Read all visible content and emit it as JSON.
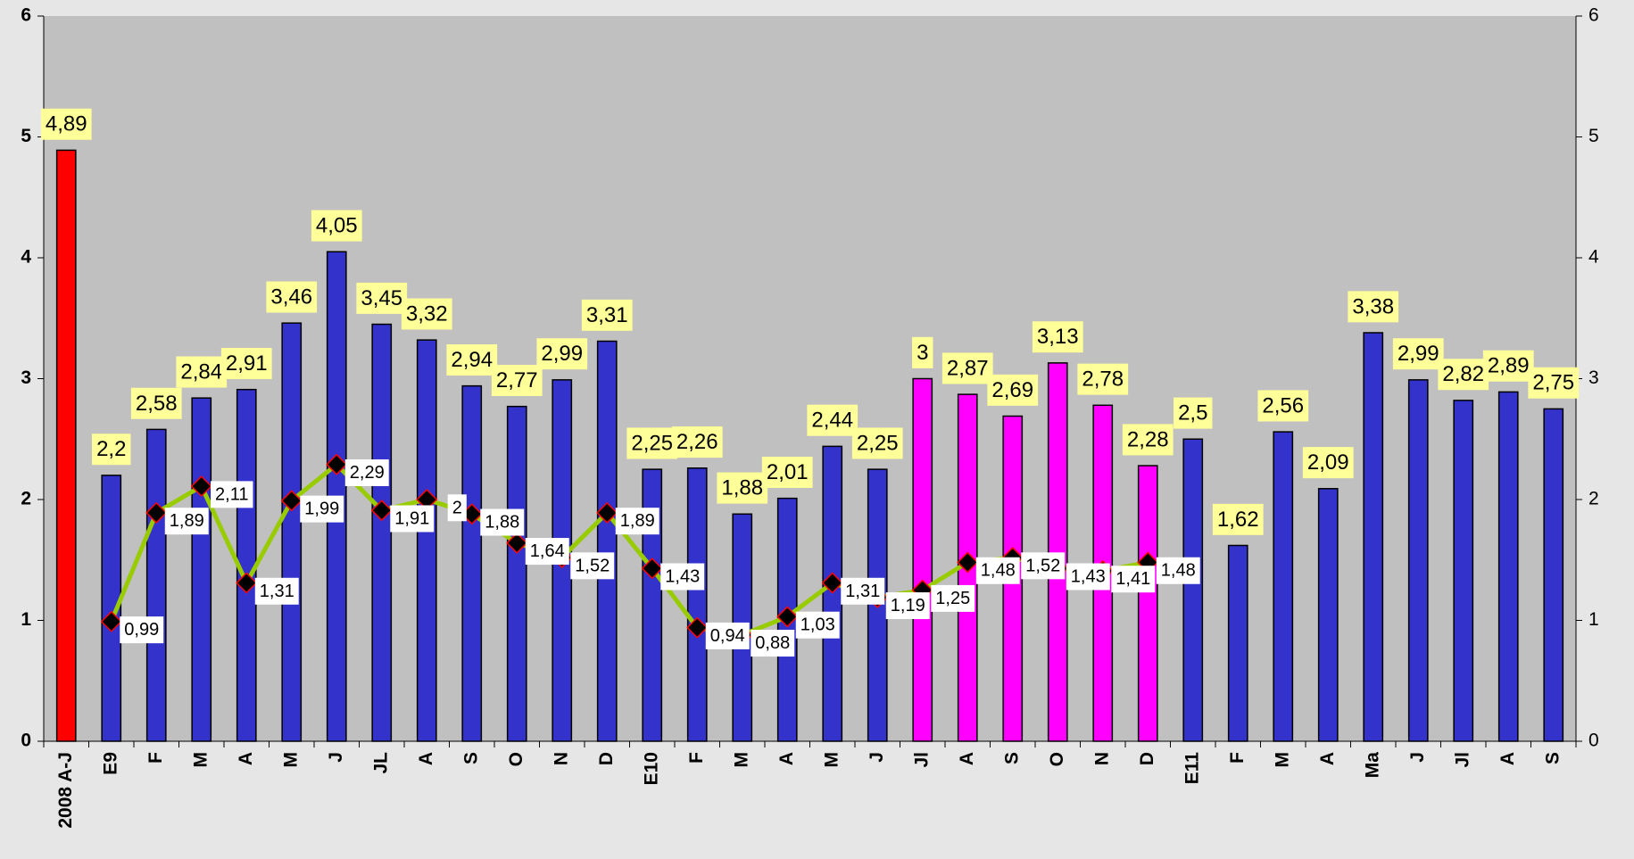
{
  "chart_data": {
    "type": "bar",
    "categories": [
      "2008 A-J",
      "E9",
      "F",
      "M",
      "A",
      "M",
      "J",
      "JL",
      "A",
      "S",
      "O",
      "N",
      "D",
      "E10",
      "F",
      "M",
      "A",
      "M",
      "J",
      "Jl",
      "A",
      "S",
      "O",
      "N",
      "D",
      "E11",
      "F",
      "M",
      "A",
      "Ma",
      "J",
      "Jl",
      "A",
      "S"
    ],
    "series": [
      {
        "type": "bar",
        "color": "#3333cc",
        "colors": [
          "#ff0000",
          "#3333cc",
          "#3333cc",
          "#3333cc",
          "#3333cc",
          "#3333cc",
          "#3333cc",
          "#3333cc",
          "#3333cc",
          "#3333cc",
          "#3333cc",
          "#3333cc",
          "#3333cc",
          "#3333cc",
          "#3333cc",
          "#3333cc",
          "#3333cc",
          "#3333cc",
          "#3333cc",
          "#ff00ff",
          "#ff00ff",
          "#ff00ff",
          "#ff00ff",
          "#ff00ff",
          "#ff00ff",
          "#3333cc",
          "#3333cc",
          "#3333cc",
          "#3333cc",
          "#3333cc",
          "#3333cc",
          "#3333cc",
          "#3333cc",
          "#3333cc"
        ],
        "values": [
          4.89,
          2.2,
          2.58,
          2.84,
          2.91,
          3.46,
          4.05,
          3.45,
          3.32,
          2.94,
          2.77,
          2.99,
          3.31,
          2.25,
          2.26,
          1.88,
          2.01,
          2.44,
          2.25,
          3,
          2.87,
          2.69,
          3.13,
          2.78,
          2.28,
          2.5,
          1.62,
          2.56,
          2.09,
          3.38,
          2.99,
          2.82,
          2.89,
          2.75
        ],
        "value_labels": [
          "4,89",
          "2,2",
          "2,58",
          "2,84",
          "2,91",
          "3,46",
          "4,05",
          "3,45",
          "3,32",
          "2,94",
          "2,77",
          "2,99",
          "3,31",
          "2,25",
          "2,26",
          "1,88",
          "2,01",
          "2,44",
          "2,25",
          "3",
          "2,87",
          "2,69",
          "3,13",
          "2,78",
          "2,28",
          "2,5",
          "1,62",
          "2,56",
          "2,09",
          "3,38",
          "2,99",
          "2,82",
          "2,89",
          "2,75"
        ]
      },
      {
        "type": "line",
        "axis": "y2",
        "color": "#99cc00",
        "marker_color": "#000000",
        "marker_edge": "#ff0000",
        "values": [
          null,
          0.99,
          1.89,
          2.11,
          1.31,
          1.99,
          2.29,
          1.91,
          2,
          1.88,
          1.64,
          1.52,
          1.89,
          1.43,
          0.94,
          0.88,
          1.03,
          1.31,
          1.19,
          1.25,
          1.48,
          1.52,
          1.43,
          1.41,
          1.48,
          null,
          null,
          null,
          null,
          null,
          null,
          null,
          null,
          null
        ],
        "value_labels": [
          null,
          "0,99",
          "1,89",
          "2,11",
          "1,31",
          "1,99",
          "2,29",
          "1,91",
          "2",
          "1,88",
          "1,64",
          "1,52",
          "1,89",
          "1,43",
          "0,94",
          "0,88",
          "1,03",
          "1,31",
          "1,19",
          "1,25",
          "1,48",
          "1,52",
          "1,43",
          "1,41",
          "1,48",
          null,
          null,
          null,
          null,
          null,
          null,
          null,
          null,
          null
        ]
      }
    ],
    "ylim": [
      0,
      6
    ],
    "yticks": [
      0,
      1,
      2,
      3,
      4,
      5,
      6
    ],
    "y2lim": [
      0,
      6
    ],
    "y2ticks": [
      0,
      1,
      2,
      3,
      4,
      5,
      6
    ],
    "background": "#c0c0c0",
    "grid": false
  }
}
